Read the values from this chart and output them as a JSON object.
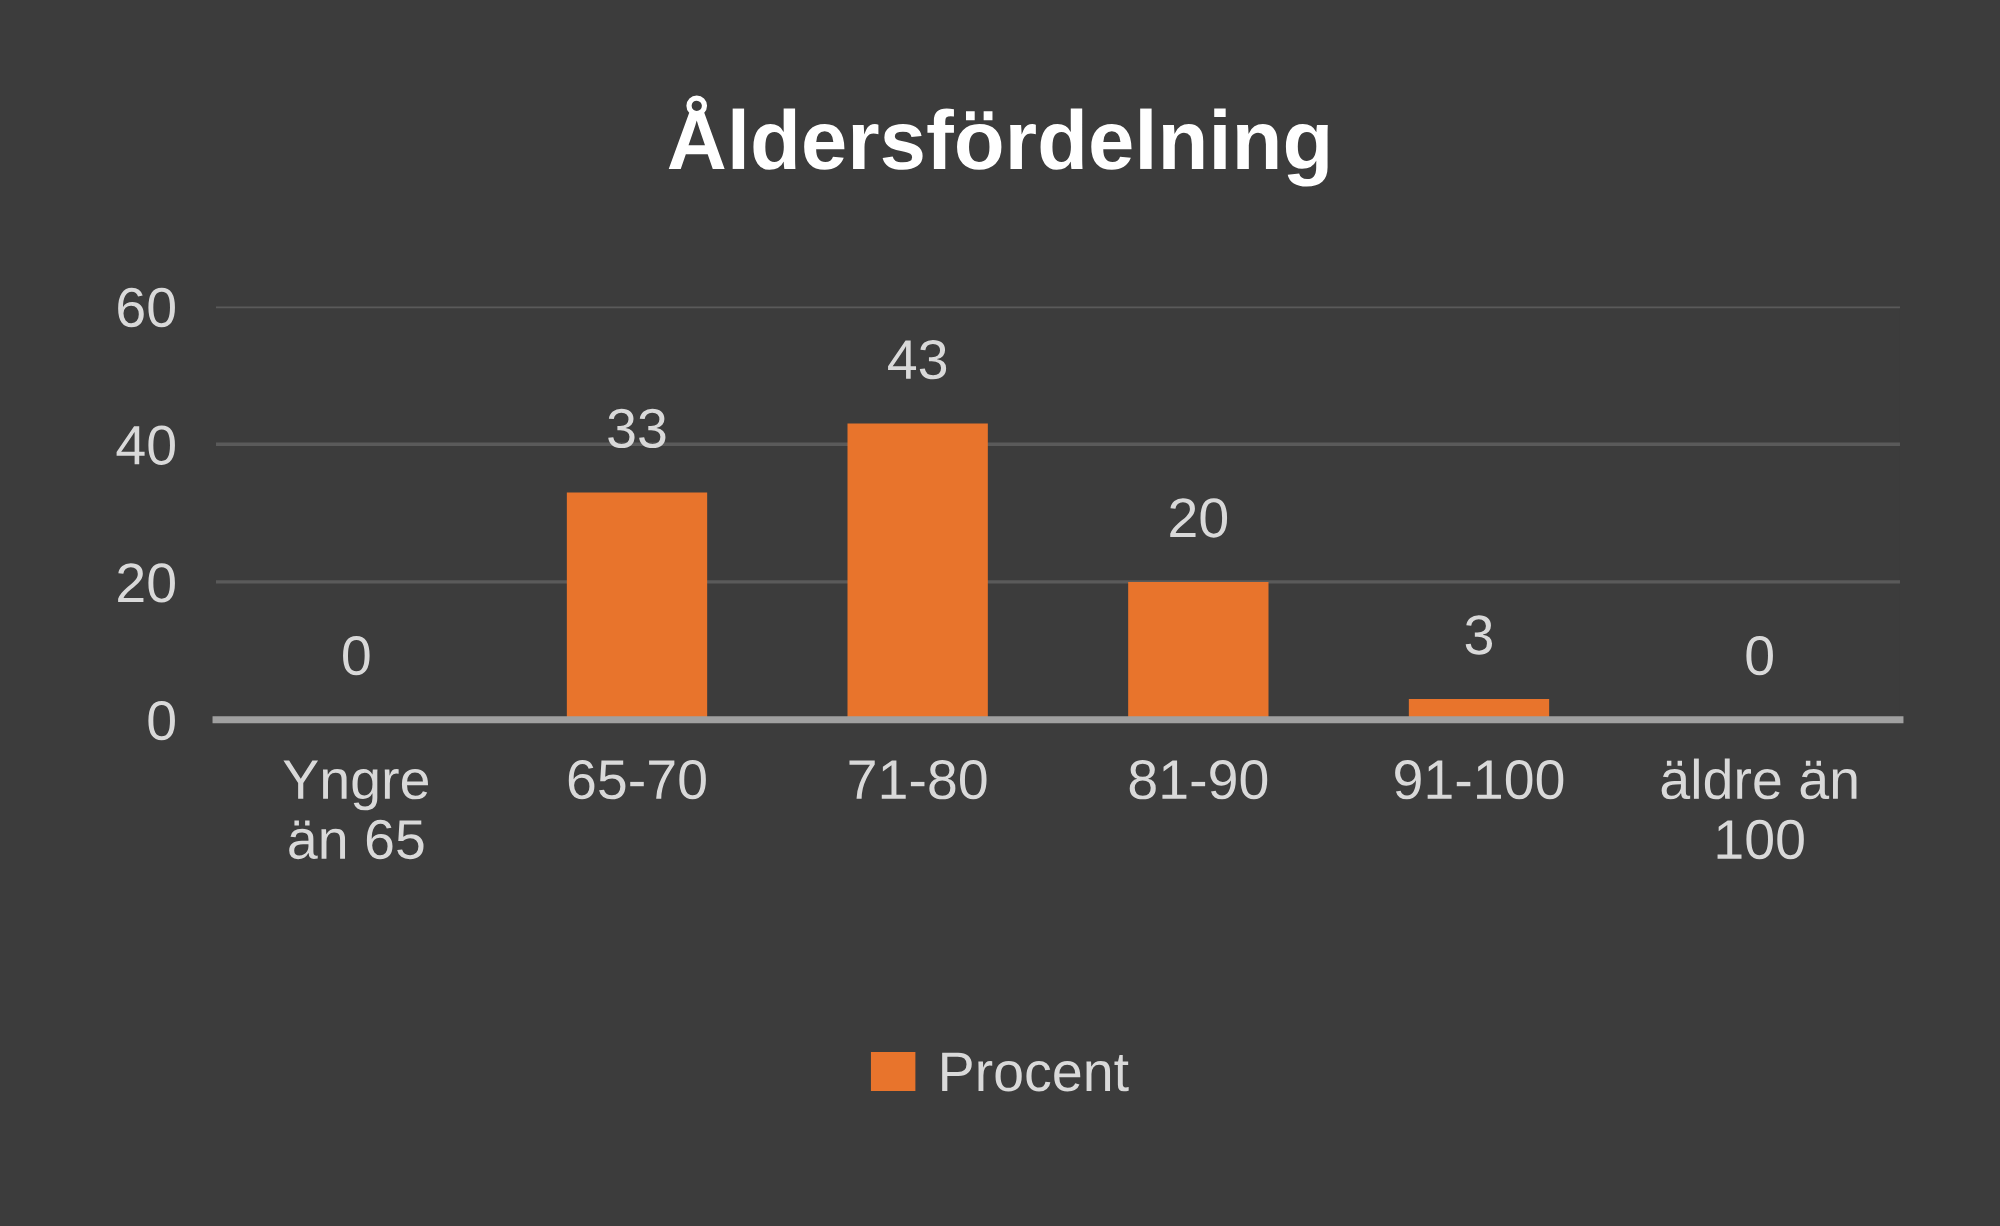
{
  "chart_data": {
    "type": "bar",
    "title": "Åldersfördelning",
    "categories": [
      "Yngre\nän 65",
      "65-70",
      "71-80",
      "81-90",
      "91-100",
      "äldre än\n100"
    ],
    "series": [
      {
        "name": "Procent",
        "color": "#e8742c",
        "values": [
          0,
          33,
          43,
          20,
          3,
          0
        ]
      }
    ],
    "ylim": [
      0,
      60
    ],
    "yticks": [
      0,
      20,
      40,
      60
    ],
    "grid": "y",
    "legend": "bottom",
    "data_labels": true
  }
}
